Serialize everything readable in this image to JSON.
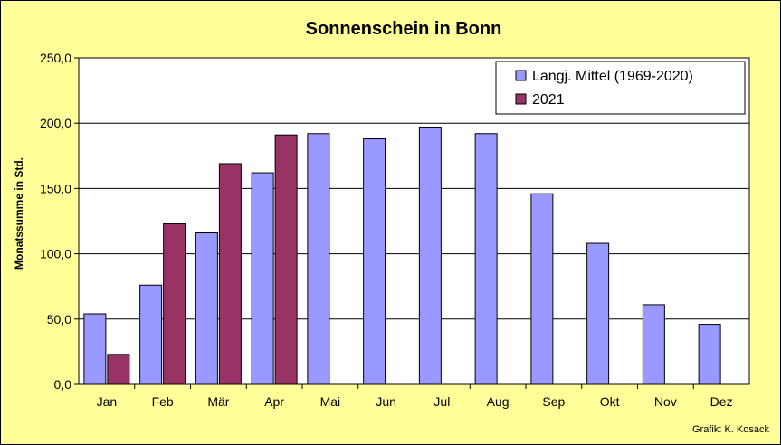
{
  "chart_data": {
    "type": "bar",
    "title": "Sonnenschein in Bonn",
    "ylabel": "Monatssumme in Std.",
    "xlabel": "",
    "ylim": [
      0,
      250
    ],
    "yticks": [
      "0,0",
      "50,0",
      "100,0",
      "150,0",
      "200,0",
      "250,0"
    ],
    "ytick_values": [
      0,
      50,
      100,
      150,
      200,
      250
    ],
    "categories": [
      "Jan",
      "Feb",
      "Mär",
      "Apr",
      "Mai",
      "Jun",
      "Jul",
      "Aug",
      "Sep",
      "Okt",
      "Nov",
      "Dez"
    ],
    "series": [
      {
        "name": "Langj. Mittel (1969-2020)",
        "color": "#9999ff",
        "values": [
          54,
          76,
          116,
          162,
          192,
          188,
          197,
          192,
          146,
          108,
          61,
          46
        ]
      },
      {
        "name": "2021",
        "color": "#993366",
        "values": [
          23,
          123,
          169,
          191,
          null,
          null,
          null,
          null,
          null,
          null,
          null,
          null
        ]
      }
    ],
    "grid": true,
    "legend": "top-right",
    "plot_background": "#ffffff"
  },
  "credit": "Grafik:  K. Kosack"
}
